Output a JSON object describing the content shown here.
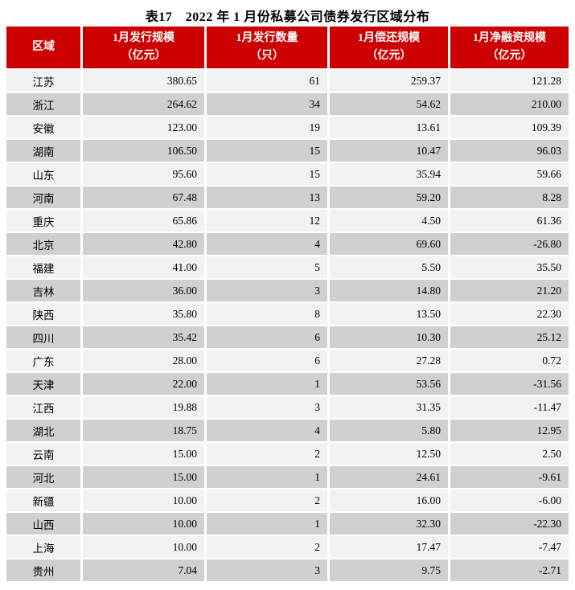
{
  "title": "表17　2022 年 1 月份私募公司债券发行区域分布",
  "colors": {
    "header_bg": "#CC0000",
    "header_text": "#FFFFFF",
    "row_light": "#F2F2F2",
    "row_dark": "#D0D0D0",
    "body_text": "#000000"
  },
  "table": {
    "headers": [
      "区域",
      "1月发行规模\n（亿元）",
      "1月发行数量\n（只）",
      "1月偿还规模\n（亿元）",
      "1月净融资规模\n（亿元）"
    ],
    "rows": [
      [
        "江苏",
        "380.65",
        "61",
        "259.37",
        "121.28"
      ],
      [
        "浙江",
        "264.62",
        "34",
        "54.62",
        "210.00"
      ],
      [
        "安徽",
        "123.00",
        "19",
        "13.61",
        "109.39"
      ],
      [
        "湖南",
        "106.50",
        "15",
        "10.47",
        "96.03"
      ],
      [
        "山东",
        "95.60",
        "15",
        "35.94",
        "59.66"
      ],
      [
        "河南",
        "67.48",
        "13",
        "59.20",
        "8.28"
      ],
      [
        "重庆",
        "65.86",
        "12",
        "4.50",
        "61.36"
      ],
      [
        "北京",
        "42.80",
        "4",
        "69.60",
        "-26.80"
      ],
      [
        "福建",
        "41.00",
        "5",
        "5.50",
        "35.50"
      ],
      [
        "吉林",
        "36.00",
        "3",
        "14.80",
        "21.20"
      ],
      [
        "陕西",
        "35.80",
        "8",
        "13.50",
        "22.30"
      ],
      [
        "四川",
        "35.42",
        "6",
        "10.30",
        "25.12"
      ],
      [
        "广东",
        "28.00",
        "6",
        "27.28",
        "0.72"
      ],
      [
        "天津",
        "22.00",
        "1",
        "53.56",
        "-31.56"
      ],
      [
        "江西",
        "19.88",
        "3",
        "31.35",
        "-11.47"
      ],
      [
        "湖北",
        "18.75",
        "4",
        "5.80",
        "12.95"
      ],
      [
        "云南",
        "15.00",
        "2",
        "12.50",
        "2.50"
      ],
      [
        "河北",
        "15.00",
        "1",
        "24.61",
        "-9.61"
      ],
      [
        "新疆",
        "10.00",
        "2",
        "16.00",
        "-6.00"
      ],
      [
        "山西",
        "10.00",
        "1",
        "32.30",
        "-22.30"
      ],
      [
        "上海",
        "10.00",
        "2",
        "17.47",
        "-7.47"
      ],
      [
        "贵州",
        "7.04",
        "3",
        "9.75",
        "-2.71"
      ]
    ]
  }
}
